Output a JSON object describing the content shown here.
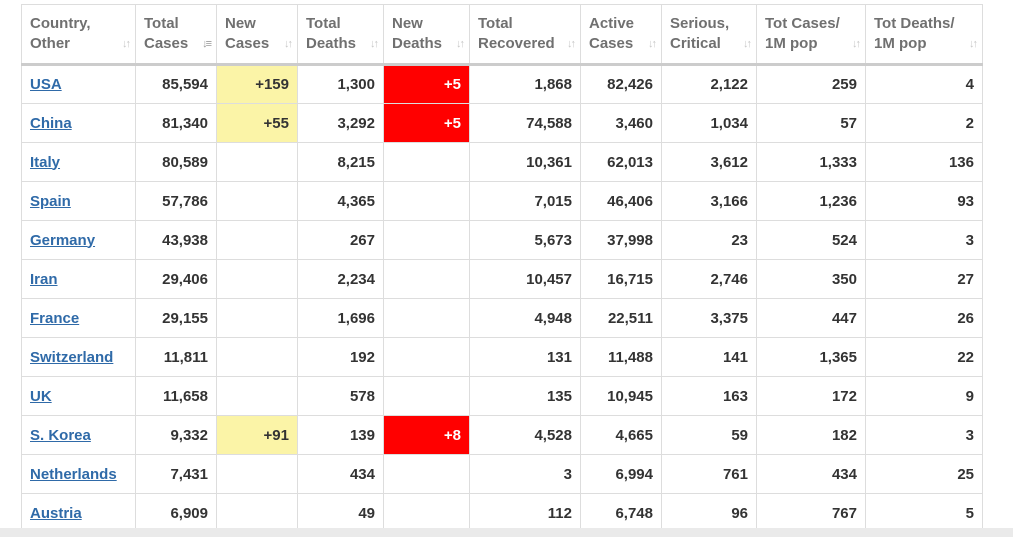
{
  "table": {
    "columns": [
      {
        "label": "Country,\nOther",
        "key": "country",
        "sort_active": false
      },
      {
        "label": "Total\nCases",
        "key": "total_cases",
        "sort_active": true
      },
      {
        "label": "New\nCases",
        "key": "new_cases",
        "sort_active": false
      },
      {
        "label": "Total\nDeaths",
        "key": "total_deaths",
        "sort_active": false
      },
      {
        "label": "New\nDeaths",
        "key": "new_deaths",
        "sort_active": false
      },
      {
        "label": "Total\nRecovered",
        "key": "total_recovered",
        "sort_active": false
      },
      {
        "label": "Active\nCases",
        "key": "active_cases",
        "sort_active": false
      },
      {
        "label": "Serious,\nCritical",
        "key": "serious_critical",
        "sort_active": false
      },
      {
        "label": "Tot Cases/\n1M pop",
        "key": "tot_cases_1m",
        "sort_active": false
      },
      {
        "label": "Tot Deaths/\n1M pop",
        "key": "tot_deaths_1m",
        "sort_active": false
      }
    ],
    "rows": [
      {
        "country": "USA",
        "total_cases": "85,594",
        "new_cases": "+159",
        "total_deaths": "1,300",
        "new_deaths": "+5",
        "total_recovered": "1,868",
        "active_cases": "82,426",
        "serious_critical": "2,122",
        "tot_cases_1m": "259",
        "tot_deaths_1m": "4"
      },
      {
        "country": "China",
        "total_cases": "81,340",
        "new_cases": "+55",
        "total_deaths": "3,292",
        "new_deaths": "+5",
        "total_recovered": "74,588",
        "active_cases": "3,460",
        "serious_critical": "1,034",
        "tot_cases_1m": "57",
        "tot_deaths_1m": "2"
      },
      {
        "country": "Italy",
        "total_cases": "80,589",
        "new_cases": "",
        "total_deaths": "8,215",
        "new_deaths": "",
        "total_recovered": "10,361",
        "active_cases": "62,013",
        "serious_critical": "3,612",
        "tot_cases_1m": "1,333",
        "tot_deaths_1m": "136"
      },
      {
        "country": "Spain",
        "total_cases": "57,786",
        "new_cases": "",
        "total_deaths": "4,365",
        "new_deaths": "",
        "total_recovered": "7,015",
        "active_cases": "46,406",
        "serious_critical": "3,166",
        "tot_cases_1m": "1,236",
        "tot_deaths_1m": "93"
      },
      {
        "country": "Germany",
        "total_cases": "43,938",
        "new_cases": "",
        "total_deaths": "267",
        "new_deaths": "",
        "total_recovered": "5,673",
        "active_cases": "37,998",
        "serious_critical": "23",
        "tot_cases_1m": "524",
        "tot_deaths_1m": "3"
      },
      {
        "country": "Iran",
        "total_cases": "29,406",
        "new_cases": "",
        "total_deaths": "2,234",
        "new_deaths": "",
        "total_recovered": "10,457",
        "active_cases": "16,715",
        "serious_critical": "2,746",
        "tot_cases_1m": "350",
        "tot_deaths_1m": "27"
      },
      {
        "country": "France",
        "total_cases": "29,155",
        "new_cases": "",
        "total_deaths": "1,696",
        "new_deaths": "",
        "total_recovered": "4,948",
        "active_cases": "22,511",
        "serious_critical": "3,375",
        "tot_cases_1m": "447",
        "tot_deaths_1m": "26"
      },
      {
        "country": "Switzerland",
        "total_cases": "11,811",
        "new_cases": "",
        "total_deaths": "192",
        "new_deaths": "",
        "total_recovered": "131",
        "active_cases": "11,488",
        "serious_critical": "141",
        "tot_cases_1m": "1,365",
        "tot_deaths_1m": "22"
      },
      {
        "country": "UK",
        "total_cases": "11,658",
        "new_cases": "",
        "total_deaths": "578",
        "new_deaths": "",
        "total_recovered": "135",
        "active_cases": "10,945",
        "serious_critical": "163",
        "tot_cases_1m": "172",
        "tot_deaths_1m": "9"
      },
      {
        "country": "S. Korea",
        "total_cases": "9,332",
        "new_cases": "+91",
        "total_deaths": "139",
        "new_deaths": "+8",
        "total_recovered": "4,528",
        "active_cases": "4,665",
        "serious_critical": "59",
        "tot_cases_1m": "182",
        "tot_deaths_1m": "3"
      },
      {
        "country": "Netherlands",
        "total_cases": "7,431",
        "new_cases": "",
        "total_deaths": "434",
        "new_deaths": "",
        "total_recovered": "3",
        "active_cases": "6,994",
        "serious_critical": "761",
        "tot_cases_1m": "434",
        "tot_deaths_1m": "25"
      },
      {
        "country": "Austria",
        "total_cases": "6,909",
        "new_cases": "",
        "total_deaths": "49",
        "new_deaths": "",
        "total_recovered": "112",
        "active_cases": "6,748",
        "serious_critical": "96",
        "tot_cases_1m": "767",
        "tot_deaths_1m": "5"
      }
    ],
    "icons": {
      "sort": "sort-icon",
      "sort_active": "sort-descending-icon"
    },
    "colors": {
      "link": "#2f6aa8",
      "new_cases_highlight": "#fbf4a7",
      "new_deaths_highlight": "#ff0000",
      "header_text": "#707070",
      "cell_text": "#333333",
      "border": "#dddddd"
    }
  }
}
